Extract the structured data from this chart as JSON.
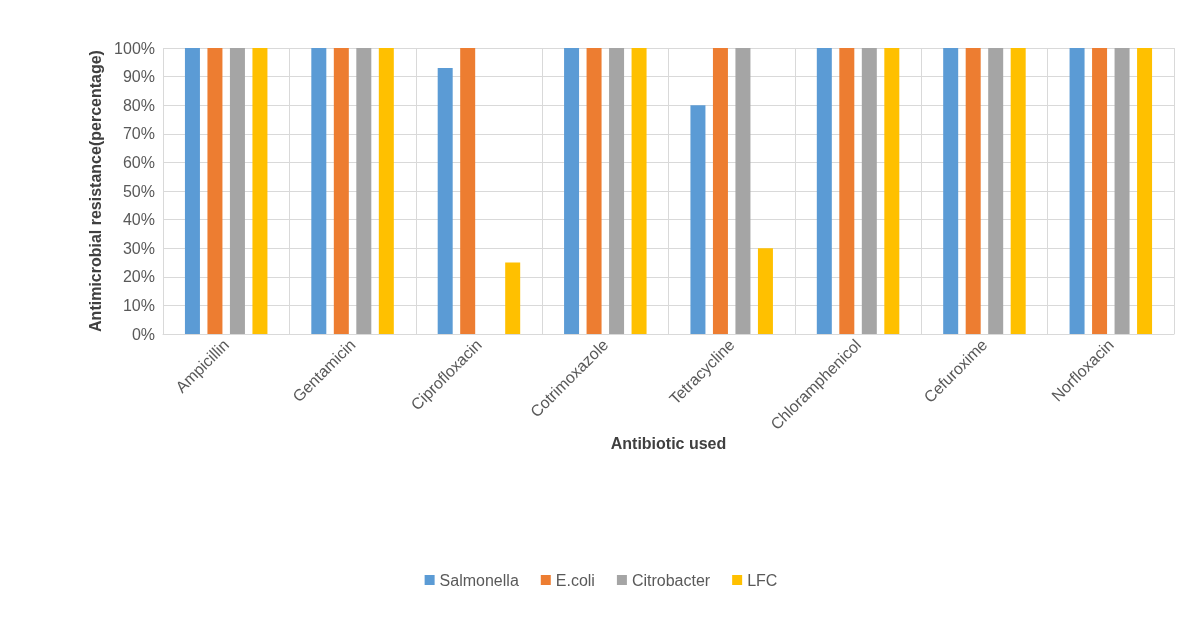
{
  "chart_data": {
    "type": "bar",
    "xlabel": "Antibiotic used",
    "ylabel": "Antimicrobial resistance(percentage)",
    "categories": [
      "Ampicillin",
      "Gentamicin",
      "Ciprofloxacin",
      "Cotrimoxazole",
      "Tetracycline",
      "Chloramphenicol",
      "Cefuroxime",
      "Norfloxacin"
    ],
    "series": [
      {
        "name": "Salmonella",
        "color": "#5b9bd5",
        "values": [
          100,
          100,
          93,
          100,
          80,
          100,
          100,
          100
        ]
      },
      {
        "name": "E.coli",
        "color": "#ed7d31",
        "values": [
          100,
          100,
          100,
          100,
          100,
          100,
          100,
          100
        ]
      },
      {
        "name": "Citrobacter",
        "color": "#a5a5a5",
        "values": [
          100,
          100,
          0,
          100,
          100,
          100,
          100,
          100
        ]
      },
      {
        "name": "LFC",
        "color": "#ffc000",
        "values": [
          100,
          100,
          25,
          100,
          30,
          100,
          100,
          100
        ]
      }
    ],
    "ylim": [
      0,
      100
    ],
    "yticks": [
      {
        "value": 0,
        "label": "0%"
      },
      {
        "value": 10,
        "label": "10%"
      },
      {
        "value": 20,
        "label": "20%"
      },
      {
        "value": 30,
        "label": "30%"
      },
      {
        "value": 40,
        "label": "40%"
      },
      {
        "value": 50,
        "label": "50%"
      },
      {
        "value": 60,
        "label": "60%"
      },
      {
        "value": 70,
        "label": "70%"
      },
      {
        "value": 80,
        "label": "80%"
      },
      {
        "value": 90,
        "label": "90%"
      },
      {
        "value": 100,
        "label": "100%"
      }
    ],
    "grid": true,
    "legend": "bottom"
  }
}
